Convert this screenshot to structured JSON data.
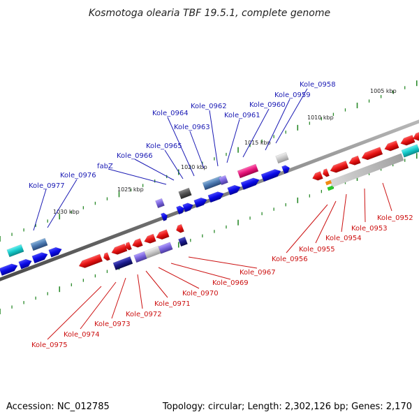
{
  "title": "Kosmotoga olearia TBF 19.5.1, complete genome",
  "footer": {
    "accession": "Accession: NC_012785",
    "summary": "Topology: circular; Length: 2,302,126 bp; Genes: 2,170"
  },
  "colors": {
    "forward_strand": "#0a0ae6",
    "reverse_strand": "#e61414",
    "top_label": "#1a1ab4",
    "bottom_label": "#cc1111",
    "tick": "#2a8a2a",
    "backbone": "#808080"
  },
  "kbp_labels": [
    "1005 kbp",
    "1010 kbp",
    "1015 kbp",
    "1020 kbp",
    "1025 kbp",
    "1030 kbp"
  ],
  "top_genes": [
    "Kole_0958",
    "Kole_0959",
    "Kole_0960",
    "Kole_0961",
    "Kole_0962",
    "Kole_0963",
    "Kole_0964",
    "Kole_0965",
    "Kole_0966",
    "fabZ",
    "Kole_0976",
    "Kole_0977"
  ],
  "bottom_genes": [
    "Kole_0952",
    "Kole_0953",
    "Kole_0954",
    "Kole_0955",
    "Kole_0956",
    "Kole_0967",
    "Kole_0969",
    "Kole_0970",
    "Kole_0971",
    "Kole_0972",
    "Kole_0973",
    "Kole_0974",
    "Kole_0975"
  ]
}
